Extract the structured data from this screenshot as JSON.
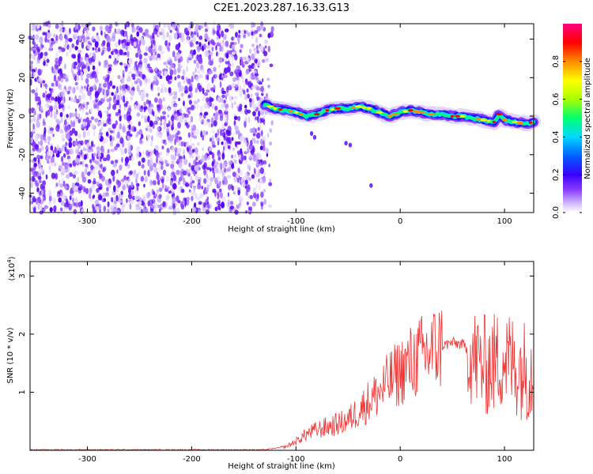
{
  "title": "C2E1.2023.287.16.33.G13",
  "chart_data": [
    {
      "type": "heatmap",
      "xlabel": "Height of straight line (km)",
      "ylabel": "Frequency (Hz)",
      "xlim": [
        -355,
        128
      ],
      "ylim": [
        -50,
        48
      ],
      "xticks": [
        -300,
        -200,
        -100,
        0,
        100
      ],
      "yticks": [
        -40,
        -20,
        0,
        20,
        40
      ],
      "noise_region_x": [
        -355,
        -130
      ],
      "signal_ridge": {
        "x": [
          -130,
          -120,
          -110,
          -100,
          -90,
          -80,
          -70,
          -60,
          -50,
          -40,
          -30,
          -20,
          -10,
          0,
          10,
          20,
          30,
          40,
          50,
          60,
          70,
          80,
          90,
          95,
          100,
          110,
          120,
          128
        ],
        "frequency": [
          6,
          4,
          3,
          2,
          0,
          1,
          3,
          4,
          4,
          5,
          4,
          2,
          0,
          2,
          3,
          2,
          1,
          1,
          0,
          0,
          -1,
          -2,
          -3,
          1,
          -2,
          -3,
          -4,
          -3
        ]
      },
      "colorbar": {
        "label": "Normalized spectral amplitude",
        "range": [
          0.0,
          1.0
        ],
        "ticks": [
          "0.0",
          "0.2",
          "0.4",
          "0.6",
          "0.8"
        ],
        "colormap": [
          "#ffffff",
          "#cfb8ff",
          "#8a3dff",
          "#3a00ff",
          "#0060ff",
          "#00d8ff",
          "#00ff70",
          "#a8ff00",
          "#ffff00",
          "#ff8a00",
          "#ff0000",
          "#ff0080"
        ]
      }
    },
    {
      "type": "line",
      "xlabel": "Height of straight line (km)",
      "ylabel": "SNR (10 * v/v)",
      "yscale_note": "(x10",
      "yscale_exp": "4",
      "yscale_close": ")",
      "xlim": [
        -355,
        128
      ],
      "ylim": [
        0,
        3.25
      ],
      "xticks": [
        -300,
        -200,
        -100,
        0,
        100
      ],
      "yticks": [
        1,
        2,
        3
      ],
      "series": [
        {
          "color": "#ee3333",
          "x": [
            -355,
            -300,
            -200,
            -130,
            -110,
            -100,
            -90,
            -80,
            -70,
            -60,
            -50,
            -40,
            -30,
            -20,
            -10,
            0,
            10,
            20,
            30,
            40,
            50,
            60,
            70,
            80,
            90,
            100,
            110,
            120,
            128
          ],
          "y": [
            0.01,
            0.01,
            0.01,
            0.01,
            0.06,
            0.15,
            0.28,
            0.35,
            0.4,
            0.45,
            0.52,
            0.68,
            0.85,
            1.0,
            1.2,
            1.35,
            1.5,
            1.62,
            1.72,
            1.8,
            1.85,
            1.82,
            1.6,
            1.45,
            1.5,
            1.6,
            1.45,
            1.4,
            1.35
          ]
        }
      ]
    }
  ]
}
